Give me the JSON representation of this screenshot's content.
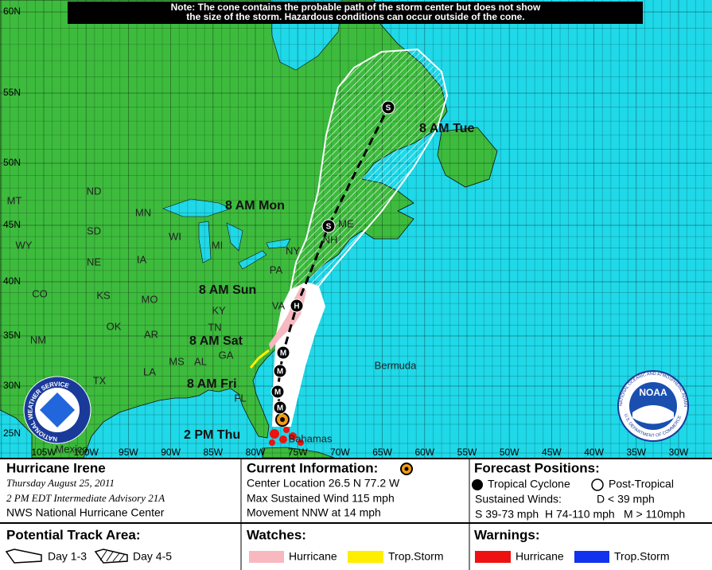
{
  "note": [
    "Note: The cone contains the probable path of the storm center but does not show",
    "the size of the storm. Hazardous conditions can occur outside of the cone."
  ],
  "map": {
    "latitude_labels": [
      "60N",
      "55N",
      "50N",
      "45N",
      "40N",
      "35N",
      "30N",
      "25N"
    ],
    "longitude_labels": [
      "105W",
      "100W",
      "95W",
      "90W",
      "85W",
      "80W",
      "75W",
      "70W",
      "65W",
      "60W",
      "55W",
      "50W",
      "45W",
      "40W",
      "35W",
      "30W"
    ],
    "region_labels": [
      "ND",
      "MT",
      "MN",
      "SD",
      "WI",
      "WY",
      "MI",
      "NE",
      "IA",
      "NY",
      "ME",
      "NH",
      "PA",
      "CO",
      "KS",
      "MO",
      "KY",
      "VA",
      "OK",
      "AR",
      "TN",
      "NM",
      "MS",
      "AL",
      "GA",
      "LA",
      "TX",
      "FL",
      "Mexico",
      "Bermuda",
      "Bahamas"
    ],
    "forecast_times": [
      "8 AM Tue",
      "8 AM Mon",
      "8 AM Sun",
      "8 AM Sat",
      "8 AM Fri",
      "2 PM Thu"
    ],
    "track_symbols": [
      "M",
      "M",
      "M",
      "M",
      "H",
      "S",
      "S"
    ],
    "logos": {
      "nws": "NATIONAL WEATHER SERVICE",
      "noaa": "NOAA",
      "noaa_ring": "NATIONAL OCEANIC AND ATMOSPHERIC ADMINISTRATION",
      "doc_ring": "U.S. DEPARTMENT OF COMMERCE"
    }
  },
  "legend": {
    "storm": {
      "name": "Hurricane Irene",
      "date": "Thursday  August 25, 2011",
      "advisory": "2 PM EDT Intermediate Advisory 21A",
      "center": "NWS National Hurricane Center"
    },
    "current": {
      "title": "Current Information:",
      "lines": [
        "Center Location 26.5 N  77.2 W",
        "Max Sustained Wind  115 mph",
        "Movement NNW at  14 mph"
      ]
    },
    "forecast": {
      "title": "Forecast Positions:",
      "tropical": "Tropical Cyclone",
      "post_tropical": "Post-Tropical",
      "winds_title": "Sustained Winds:",
      "winds": [
        "D  < 39 mph",
        "S  39-73 mph",
        "H  74-110 mph",
        "M  > 110mph"
      ]
    },
    "track_area": {
      "title": "Potential Track Area:",
      "day13": "Day 1-3",
      "day45": "Day 4-5"
    },
    "watches": {
      "title": "Watches:",
      "hurricane": "Hurricane",
      "storm": "Trop.Storm"
    },
    "warnings": {
      "title": "Warnings:",
      "hurricane": "Hurricane",
      "storm": "Trop.Storm"
    }
  }
}
